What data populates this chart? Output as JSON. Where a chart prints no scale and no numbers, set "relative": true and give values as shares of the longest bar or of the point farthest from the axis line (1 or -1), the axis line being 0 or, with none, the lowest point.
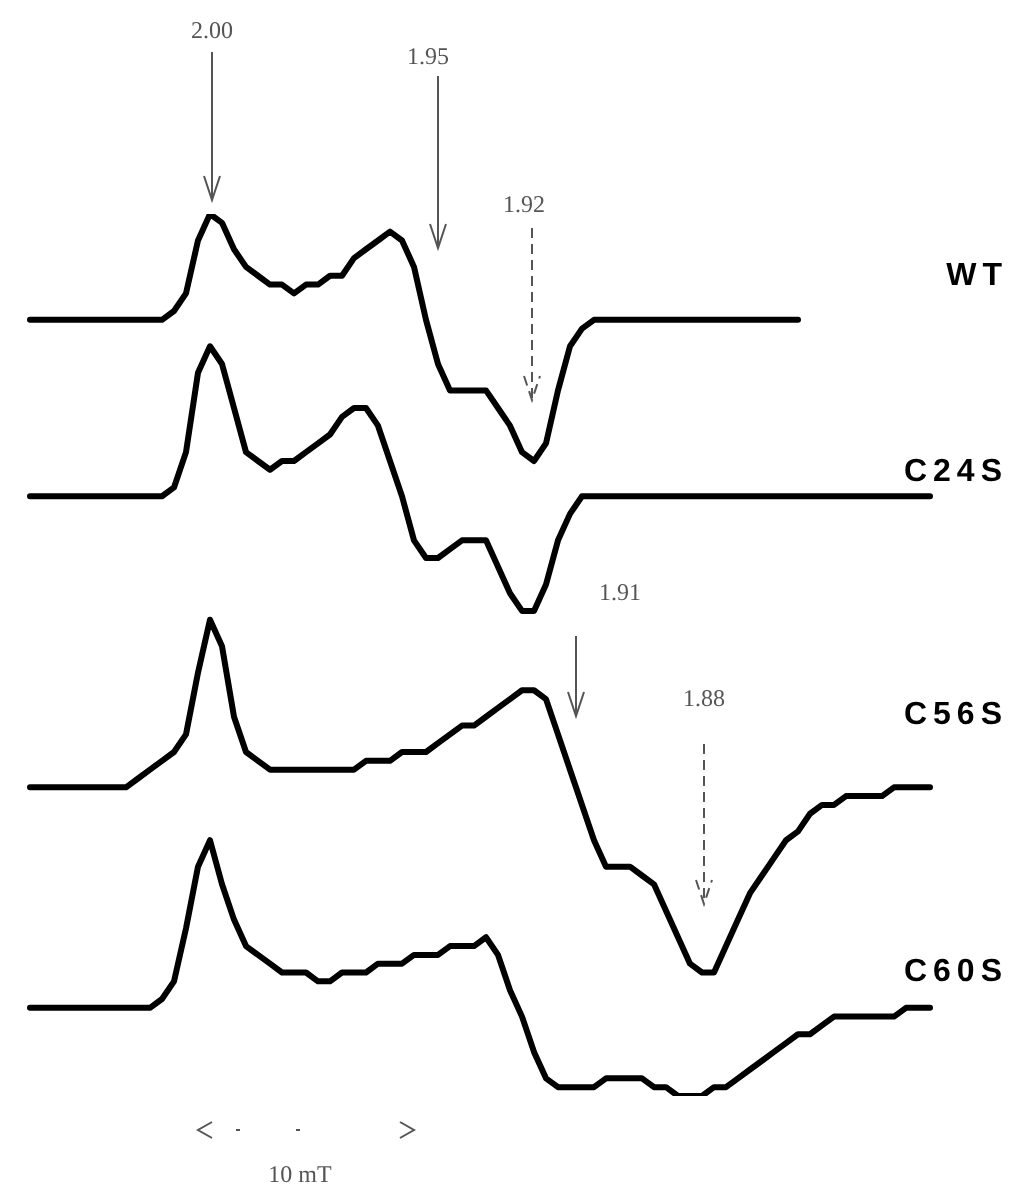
{
  "chart_data": {
    "type": "line",
    "relative": true,
    "categories": [
      null,
      null,
      null,
      null,
      null,
      null,
      null,
      null,
      null,
      null,
      null,
      null,
      null,
      null,
      null,
      null,
      null,
      null,
      null,
      null,
      null,
      null,
      null,
      null,
      null,
      null,
      null,
      null,
      null,
      null,
      null,
      null,
      null,
      null,
      null,
      null,
      null,
      null,
      null,
      null,
      null,
      null,
      null,
      null,
      null,
      null,
      null,
      null,
      null,
      null,
      null,
      null,
      null,
      null,
      null,
      null,
      null,
      null,
      null,
      null,
      null,
      null,
      null,
      null,
      null,
      null,
      null,
      null,
      null,
      null,
      null,
      null,
      null,
      null,
      null,
      null
    ],
    "series": [
      {
        "name": "WT",
        "color": "#000000",
        "values": [
          0.88,
          0.88,
          0.88,
          0.88,
          0.88,
          0.88,
          0.88,
          0.88,
          0.88,
          0.88,
          0.88,
          0.88,
          0.89,
          0.91,
          0.97,
          1,
          0.99,
          0.96,
          0.94,
          0.93,
          0.92,
          0.92,
          0.91,
          0.92,
          0.92,
          0.93,
          0.93,
          0.95,
          0.96,
          0.97,
          0.98,
          0.97,
          0.94,
          0.88,
          0.83,
          0.8,
          0.8,
          0.8,
          0.8,
          0.78,
          0.76,
          0.73,
          0.72,
          0.74,
          0.8,
          0.85,
          0.87,
          0.88,
          0.88,
          0.88,
          0.88,
          0.88,
          0.88,
          0.88,
          0.88,
          0.88,
          0.88,
          0.88,
          0.88,
          0.88,
          0.88,
          0.88,
          0.88,
          0.88,
          0.88,
          null,
          null,
          null,
          null,
          null,
          null,
          null,
          null,
          null,
          null,
          null
        ]
      },
      {
        "name": "C24S",
        "color": "#000000",
        "values": [
          0.68,
          0.68,
          0.68,
          0.68,
          0.68,
          0.68,
          0.68,
          0.68,
          0.68,
          0.68,
          0.68,
          0.68,
          0.69,
          0.73,
          0.82,
          0.85,
          0.83,
          0.78,
          0.73,
          0.72,
          0.71,
          0.72,
          0.72,
          0.73,
          0.74,
          0.75,
          0.77,
          0.78,
          0.78,
          0.76,
          0.72,
          0.68,
          0.63,
          0.61,
          0.61,
          0.62,
          0.63,
          0.63,
          0.63,
          0.6,
          0.57,
          0.55,
          0.55,
          0.58,
          0.63,
          0.66,
          0.68,
          0.68,
          0.68,
          0.68,
          0.68,
          0.68,
          0.68,
          0.68,
          0.68,
          0.68,
          0.68,
          0.68,
          0.68,
          0.68,
          0.68,
          0.68,
          0.68,
          0.68,
          0.68,
          0.68,
          0.68,
          0.68,
          0.68,
          0.68,
          0.68,
          0.68,
          0.68,
          0.68,
          0.68,
          0.68
        ]
      },
      {
        "name": "C56S",
        "color": "#000000",
        "values": [
          0.35,
          0.35,
          0.35,
          0.35,
          0.35,
          0.35,
          0.35,
          0.35,
          0.35,
          0.36,
          0.37,
          0.38,
          0.39,
          0.41,
          0.48,
          0.54,
          0.51,
          0.43,
          0.39,
          0.38,
          0.37,
          0.37,
          0.37,
          0.37,
          0.37,
          0.37,
          0.37,
          0.37,
          0.38,
          0.38,
          0.38,
          0.39,
          0.39,
          0.39,
          0.4,
          0.41,
          0.42,
          0.42,
          0.43,
          0.44,
          0.45,
          0.46,
          0.46,
          0.45,
          0.41,
          0.37,
          0.33,
          0.29,
          0.26,
          0.26,
          0.26,
          0.25,
          0.24,
          0.21,
          0.18,
          0.15,
          0.14,
          0.14,
          0.17,
          0.2,
          0.23,
          0.25,
          0.27,
          0.29,
          0.3,
          0.32,
          0.33,
          0.33,
          0.34,
          0.34,
          0.34,
          0.34,
          0.35,
          0.35,
          0.35,
          0.35
        ]
      },
      {
        "name": "C60S",
        "color": "#000000",
        "values": [
          0.1,
          0.1,
          0.1,
          0.1,
          0.1,
          0.1,
          0.1,
          0.1,
          0.1,
          0.1,
          0.1,
          0.11,
          0.13,
          0.19,
          0.26,
          0.29,
          0.24,
          0.2,
          0.17,
          0.16,
          0.15,
          0.14,
          0.14,
          0.14,
          0.13,
          0.13,
          0.14,
          0.14,
          0.14,
          0.15,
          0.15,
          0.15,
          0.16,
          0.16,
          0.16,
          0.17,
          0.17,
          0.17,
          0.18,
          0.16,
          0.12,
          0.09,
          0.05,
          0.02,
          0.01,
          0.01,
          0.01,
          0.01,
          0.02,
          0.02,
          0.02,
          0.02,
          0.01,
          0.01,
          0,
          0,
          0,
          0.01,
          0.01,
          0.02,
          0.03,
          0.04,
          0.05,
          0.06,
          0.07,
          0.07,
          0.08,
          0.09,
          0.09,
          0.09,
          0.09,
          0.09,
          0.09,
          0.1,
          0.1,
          0.1
        ]
      }
    ],
    "annotations": [
      "2.00",
      "1.95",
      "1.92",
      "1.91",
      "1.88",
      "10 mT"
    ],
    "legend": false
  }
}
